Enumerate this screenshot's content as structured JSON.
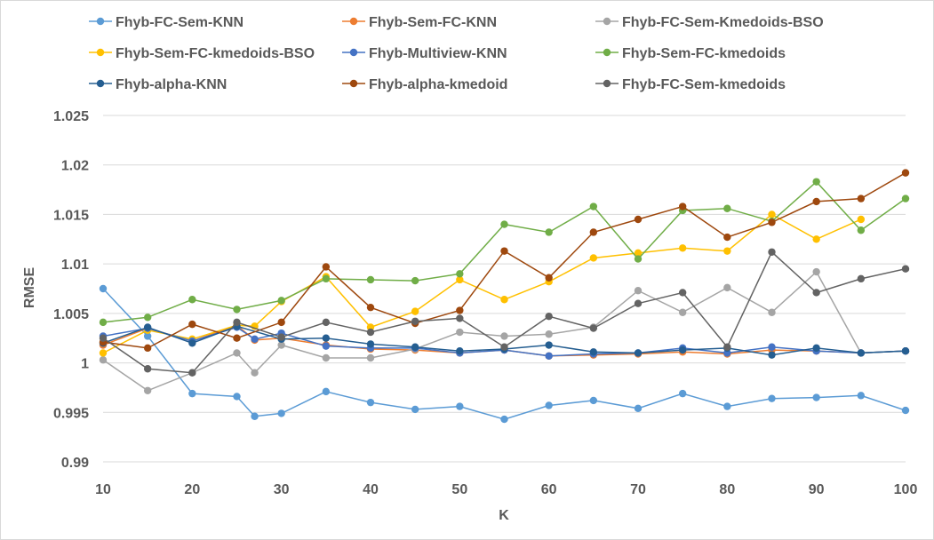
{
  "chart_data": {
    "type": "line",
    "title": "",
    "xlabel": "K",
    "ylabel": "RMSE",
    "xlim": [
      10,
      100
    ],
    "ylim": [
      0.99,
      1.025
    ],
    "x_ticks": [
      "10",
      "20",
      "30",
      "40",
      "50",
      "60",
      "70",
      "80",
      "90",
      "100"
    ],
    "y_ticks": [
      "0.99",
      "0.995",
      "1",
      "1.005",
      "1.01",
      "1.015",
      "1.02",
      "1.025"
    ],
    "grid": "horizontal",
    "legend_position": "top",
    "x": [
      10,
      15,
      20,
      25,
      27,
      30,
      35,
      40,
      45,
      50,
      55,
      60,
      65,
      70,
      75,
      80,
      85,
      90,
      95,
      100
    ],
    "series": [
      {
        "name": "Fhyb-FC-Sem-KNN",
        "color": "#5b9bd5",
        "values": [
          1.0075,
          1.0027,
          0.9969,
          0.9966,
          0.9946,
          0.9949,
          0.9971,
          0.996,
          0.9953,
          0.9956,
          0.9943,
          0.9957,
          0.9962,
          0.9954,
          0.9969,
          0.9956,
          0.9964,
          0.9965,
          0.9967,
          0.9952
        ]
      },
      {
        "name": "Fhyb-Sem-FC-KNN",
        "color": "#ed7d31",
        "values": [
          1.0018,
          1.0035,
          1.0022,
          1.0038,
          1.0023,
          1.0025,
          1.0018,
          1.0014,
          1.0013,
          1.001,
          1.0013,
          1.0007,
          1.0008,
          1.0009,
          1.0011,
          1.0009,
          1.0013,
          1.0012,
          1.001,
          1.0012
        ]
      },
      {
        "name": "Fhyb-FC-Sem-Kmedoids-BSO",
        "color": "#a5a5a5",
        "values": [
          1.0003,
          0.9972,
          0.999,
          1.001,
          0.999,
          1.0018,
          1.0005,
          1.0005,
          1.0014,
          1.0031,
          1.0027,
          1.0029,
          1.0036,
          1.0073,
          1.0051,
          1.0076,
          1.0051,
          1.0092,
          1.001,
          1.0012
        ]
      },
      {
        "name": "Fhyb-Sem-FC-kmedoids-BSO",
        "color": "#ffc000",
        "values": [
          1.001,
          1.0033,
          1.0024,
          1.0038,
          1.0037,
          1.0062,
          1.0087,
          1.0036,
          1.0052,
          1.0084,
          1.0064,
          1.0082,
          1.0106,
          1.0111,
          1.0116,
          1.0113,
          1.015,
          1.0125,
          1.0145,
          null
        ]
      },
      {
        "name": "Fhyb-Multiview-KNN",
        "color": "#4472c4",
        "values": [
          1.0027,
          1.0035,
          1.0022,
          1.0036,
          1.0024,
          1.003,
          1.0017,
          1.0015,
          1.0015,
          1.001,
          1.0013,
          1.0007,
          1.0009,
          1.001,
          1.0015,
          1.001,
          1.0016,
          1.0012,
          1.001,
          1.0012
        ]
      },
      {
        "name": "Fhyb-Sem-FC-kmedoids",
        "color": "#70ad47",
        "values": [
          1.0041,
          1.0046,
          1.0064,
          1.0054,
          null,
          1.0063,
          1.0085,
          1.0084,
          1.0083,
          1.009,
          1.014,
          1.0132,
          1.0158,
          1.0105,
          1.0154,
          1.0156,
          1.0143,
          1.0183,
          1.0134,
          1.0166
        ]
      },
      {
        "name": "Fhyb-alpha-KNN",
        "color": "#255e91",
        "values": [
          1.002,
          1.0036,
          1.002,
          1.0037,
          null,
          1.0024,
          1.0025,
          1.0019,
          1.0016,
          1.0012,
          1.0014,
          1.0018,
          1.0011,
          1.001,
          1.0013,
          1.0015,
          1.0008,
          1.0015,
          1.001,
          1.0012
        ]
      },
      {
        "name": "Fhyb-alpha-kmedoid",
        "color": "#9e480e",
        "values": [
          1.0021,
          1.0015,
          1.0039,
          1.0025,
          null,
          1.0041,
          1.0097,
          1.0056,
          1.004,
          1.0053,
          1.0113,
          1.0086,
          1.0132,
          1.0145,
          1.0158,
          1.0127,
          1.0142,
          1.0163,
          1.0166,
          1.0192
        ]
      },
      {
        "name": "Fhyb-FC-Sem-kmedoids",
        "color": "#636363",
        "values": [
          1.0025,
          0.9994,
          0.999,
          1.0041,
          null,
          1.0026,
          1.0041,
          1.0031,
          1.0042,
          1.0045,
          1.0016,
          1.0047,
          1.0035,
          1.006,
          1.0071,
          1.0016,
          1.0112,
          1.0071,
          1.0085,
          1.0095
        ]
      }
    ]
  }
}
